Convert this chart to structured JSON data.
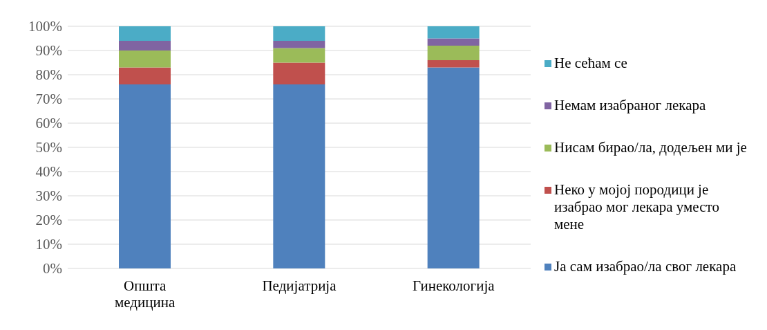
{
  "chart_data": {
    "type": "bar",
    "stacked": true,
    "categories": [
      "Општа медицина",
      "Педијатрија",
      "Гинекологија"
    ],
    "series": [
      {
        "name": "Ја сам изабрао/ла свог лекара",
        "color": "#4f81bd",
        "values": [
          76,
          76,
          83
        ]
      },
      {
        "name": "Неко у мојој породици је изабрао мог лекара уместо мене",
        "color": "#c0504d",
        "values": [
          7,
          9,
          3
        ]
      },
      {
        "name": "Нисам бирао/ла, додељен ми је",
        "color": "#9bbb59",
        "values": [
          7,
          6,
          6
        ]
      },
      {
        "name": "Немам изабраног лекара",
        "color": "#8064a2",
        "values": [
          4,
          3,
          3
        ]
      },
      {
        "name": "Не сећам се",
        "color": "#4bacc6",
        "values": [
          6,
          6,
          5
        ]
      }
    ],
    "ylim": [
      0,
      100
    ],
    "yticks": [
      {
        "value": 0,
        "label": "0%"
      },
      {
        "value": 10,
        "label": "10%"
      },
      {
        "value": 20,
        "label": "20%"
      },
      {
        "value": 30,
        "label": "30%"
      },
      {
        "value": 40,
        "label": "40%"
      },
      {
        "value": 50,
        "label": "50%"
      },
      {
        "value": 60,
        "label": "60%"
      },
      {
        "value": 70,
        "label": "70%"
      },
      {
        "value": 80,
        "label": "80%"
      },
      {
        "value": 90,
        "label": "90%"
      },
      {
        "value": 100,
        "label": "100%"
      }
    ],
    "grid": "y",
    "legend": "right"
  }
}
